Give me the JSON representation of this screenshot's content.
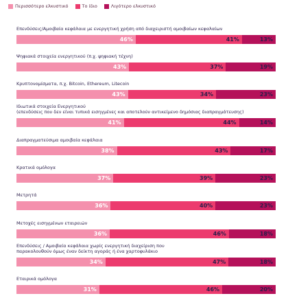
{
  "chart_data": {
    "type": "bar",
    "orientation": "horizontal",
    "stacked": true,
    "xlim": [
      0,
      100
    ],
    "unit": "%",
    "legend_position": "top-left",
    "series": [
      {
        "name": "Περισσότερο ελκυστικό",
        "color": "#f490ad"
      },
      {
        "name": "Το ίδιο",
        "color": "#ec3b6e"
      },
      {
        "name": "Λιγότερο ελκυστικό",
        "color": "#b5115a"
      }
    ],
    "rows": [
      {
        "label": "Επενδύσεις/Αμοιβαία κεφάλαια με ενεργητική χρήση από διαχειριστή αμοιβαίων κεφαλαίων",
        "values": [
          46,
          41,
          13
        ]
      },
      {
        "label": "Ψηφιακά στοιχεία ενεργητικού (π.χ. ψηφιακή τέχνη)",
        "values": [
          43,
          37,
          19
        ]
      },
      {
        "label": "Κρυπτονομίσματα, π.χ. Bitcoin, Ethereum, Litecoin",
        "values": [
          43,
          34,
          23
        ]
      },
      {
        "label": "Ιδιωτικά στοιχεία Ενεργητικού\n(επενδύσεις που δεν είναι τυπικά εισηγμένες και αποτελούν αντικείμενο δημόσιας διαπραγμάτευσης)",
        "values": [
          41,
          44,
          14
        ]
      },
      {
        "label": "Διαπραγματεύσιμα αμοιβαία κεφάλαια",
        "values": [
          38,
          43,
          17
        ]
      },
      {
        "label": "Κρατικά ομόλογα",
        "values": [
          37,
          39,
          23
        ]
      },
      {
        "label": "Μετρητά",
        "values": [
          36,
          40,
          23
        ]
      },
      {
        "label": "Μετοχές εισηγμένων εταιρειών",
        "values": [
          36,
          46,
          18
        ]
      },
      {
        "label": "Επενδύσεις / Αμοιβαία κεφάλαια χωρίς ενεργητική διαχείριση που\nπαρακολουθούν όμως έναν δείκτη αγοράς ή ένα χαρτοφυλάκιο",
        "values": [
          34,
          47,
          18
        ]
      },
      {
        "label": "Εταιρικά ομόλογα",
        "values": [
          31,
          46,
          20
        ]
      }
    ]
  }
}
